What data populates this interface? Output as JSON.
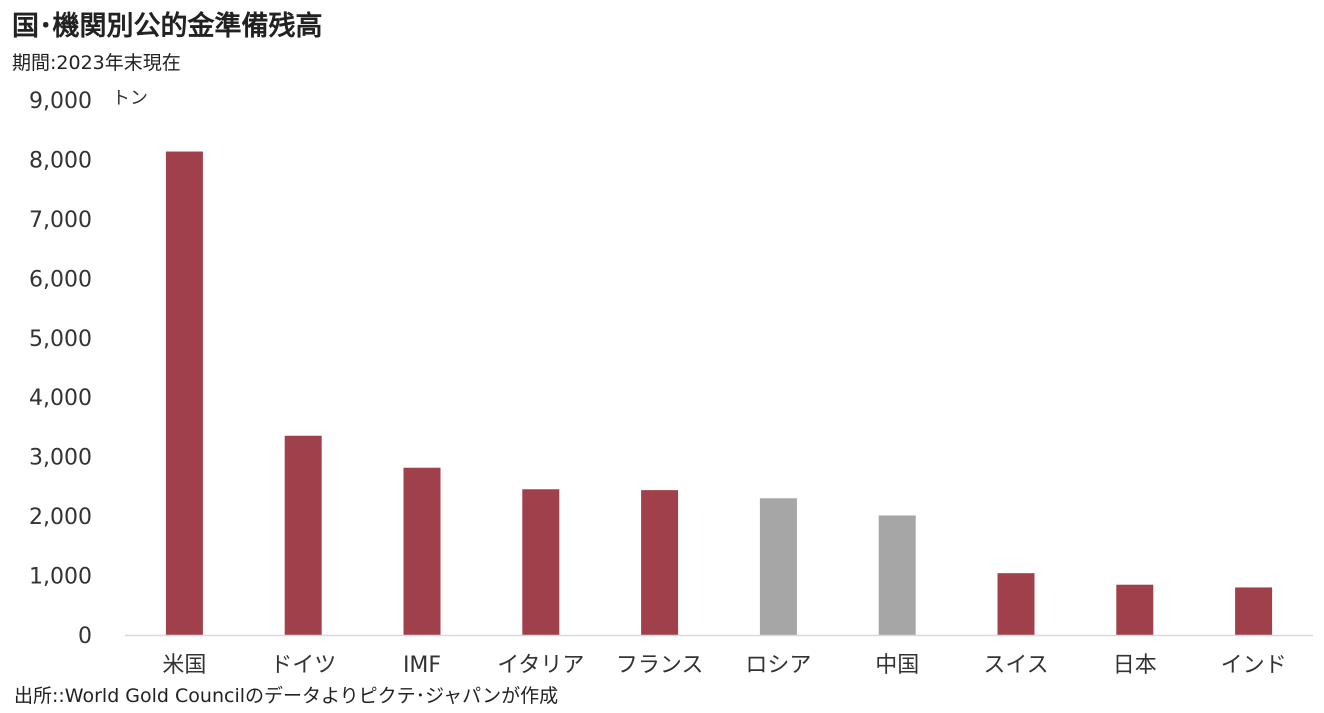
{
  "header": {
    "title": "国･機関別公的金準備残高",
    "period": "期間:2023年末現在"
  },
  "footer": {
    "source": "出所::World Gold Councilのデータよりピクテ･ジャパンが作成"
  },
  "colors": {
    "primary_bar": "#a0404a",
    "highlight_bar": "#a6a6a6",
    "axis_line": "#d9d9d9"
  },
  "chart_data": {
    "type": "bar",
    "categories": [
      "米国",
      "ドイツ",
      "IMF",
      "イタリア",
      "フランス",
      "ロシア",
      "中国",
      "スイス",
      "日本",
      "インド"
    ],
    "values": [
      8133,
      3352,
      2814,
      2452,
      2437,
      2300,
      2011,
      1040,
      846,
      800
    ],
    "bar_colors": [
      "primary",
      "primary",
      "primary",
      "primary",
      "primary",
      "highlight",
      "highlight",
      "primary",
      "primary",
      "primary"
    ],
    "ylim": [
      0,
      9000
    ],
    "yticks": [
      0,
      1000,
      2000,
      3000,
      4000,
      5000,
      6000,
      7000,
      8000,
      9000
    ],
    "ytick_labels": [
      "0",
      "1,000",
      "2,000",
      "3,000",
      "4,000",
      "5,000",
      "6,000",
      "7,000",
      "8,000",
      "9,000"
    ],
    "ylabel": "トン",
    "grid": false,
    "legend": "none"
  }
}
